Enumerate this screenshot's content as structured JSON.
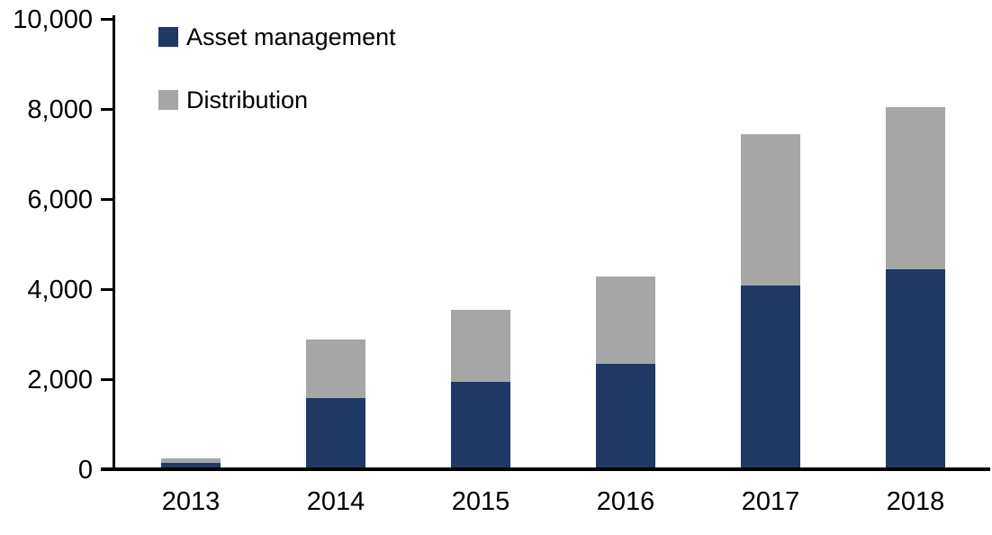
{
  "chart_data": {
    "type": "bar",
    "stacked": true,
    "title": "",
    "xlabel": "",
    "ylabel": "",
    "categories": [
      "2013",
      "2014",
      "2015",
      "2016",
      "2017",
      "2018"
    ],
    "series": [
      {
        "name": "Asset management",
        "color": "#1F3864",
        "values": [
          100,
          1550,
          1900,
          2300,
          4050,
          4400
        ]
      },
      {
        "name": "Distribution",
        "color": "#A6A6A6",
        "values": [
          100,
          1300,
          1600,
          1950,
          3350,
          3600
        ]
      }
    ],
    "totals": [
      200,
      2850,
      3500,
      4250,
      7400,
      8000
    ],
    "ylim": [
      0,
      10000
    ],
    "ytick_interval": 2000,
    "ytick_labels": [
      "0",
      "2,000",
      "4,000",
      "6,000",
      "8,000",
      "10,000"
    ],
    "grid": false,
    "legend_position": "top-left-inside",
    "axis_color": "#000000",
    "background_color": "#FFFFFF"
  }
}
